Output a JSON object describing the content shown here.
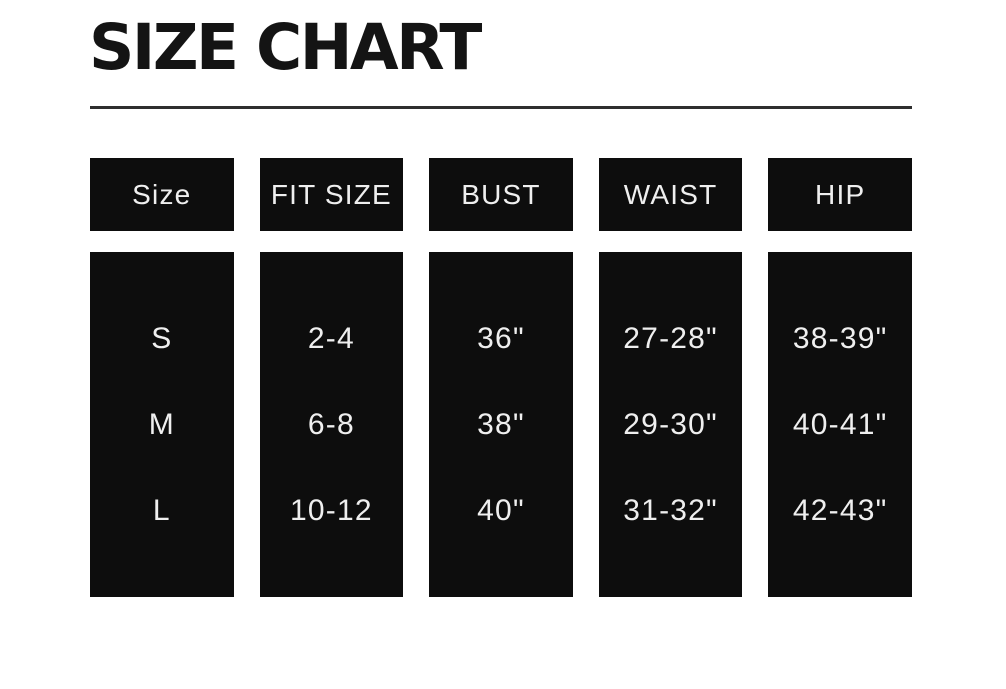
{
  "page": {
    "title": "SIZE CHART"
  },
  "colors": {
    "background": "#ffffff",
    "box": "#0d0d0d",
    "box_text": "#efefef",
    "title_text": "#141414",
    "divider": "#2e2e2e"
  },
  "chart_data": {
    "type": "table",
    "title": "SIZE CHART",
    "columns": [
      "Size",
      "FIT SIZE",
      "BUST",
      "WAIST",
      "HIP"
    ],
    "rows": [
      [
        "S",
        "2-4",
        "36\"",
        "27-28\"",
        "38-39\""
      ],
      [
        "M",
        "6-8",
        "38\"",
        "29-30\"",
        "40-41\""
      ],
      [
        "L",
        "10-12",
        "40\"",
        "31-32\"",
        "42-43\""
      ]
    ],
    "layout": {
      "column_blocks": true,
      "header_row_separate": true,
      "rows_centered_vertically": true
    }
  }
}
